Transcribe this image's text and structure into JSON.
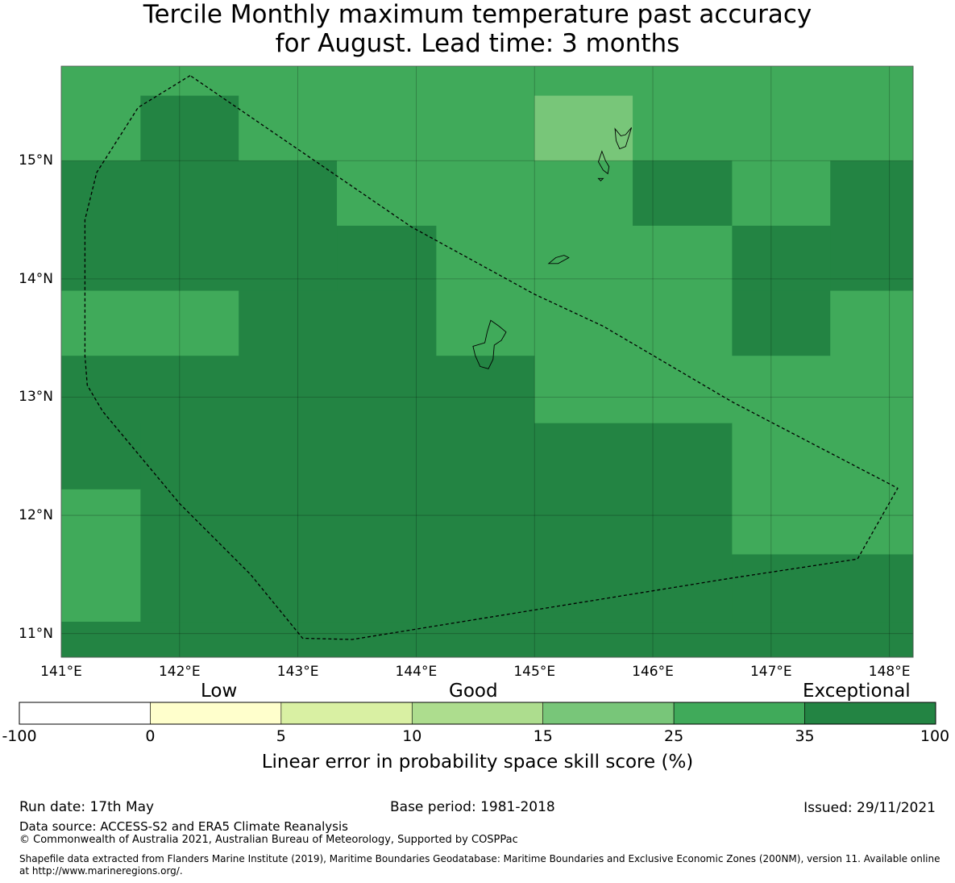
{
  "title": {
    "line1": "Tercile Monthly maximum temperature past accuracy",
    "line2": "for August. Lead time: 3 months"
  },
  "map": {
    "lon_range": [
      141.0,
      148.2
    ],
    "lat_range": [
      10.8,
      15.8
    ],
    "lat_ticks": [
      "15°N",
      "14°N",
      "13°N",
      "12°N",
      "11°N"
    ],
    "lat_tick_values": [
      15,
      14,
      13,
      12,
      11
    ],
    "lon_ticks": [
      "141°E",
      "142°E",
      "143°E",
      "144°E",
      "145°E",
      "146°E",
      "147°E",
      "148°E"
    ],
    "lon_tick_values": [
      141,
      142,
      143,
      144,
      145,
      146,
      147,
      148
    ],
    "grid": true,
    "colors": {
      "c35": "#40aa5a",
      "c100": "#238443",
      "c25": "#78c679"
    },
    "cells": [
      {
        "lon": [
          141.0,
          141.67
        ],
        "lat": [
          15.0,
          15.8
        ],
        "value": "c35"
      },
      {
        "lon": [
          141.67,
          142.5
        ],
        "lat": [
          15.55,
          15.8
        ],
        "value": "c35"
      },
      {
        "lon": [
          141.67,
          142.5
        ],
        "lat": [
          15.0,
          15.55
        ],
        "value": "c100"
      },
      {
        "lon": [
          142.5,
          144.17
        ],
        "lat": [
          15.0,
          15.8
        ],
        "value": "c35"
      },
      {
        "lon": [
          144.17,
          145.0
        ],
        "lat": [
          15.0,
          15.8
        ],
        "value": "c35"
      },
      {
        "lon": [
          145.0,
          145.83
        ],
        "lat": [
          15.55,
          15.8
        ],
        "value": "c35"
      },
      {
        "lon": [
          145.0,
          145.83
        ],
        "lat": [
          15.0,
          15.55
        ],
        "value": "c25"
      },
      {
        "lon": [
          145.83,
          148.2
        ],
        "lat": [
          15.0,
          15.8
        ],
        "value": "c35"
      },
      {
        "lon": [
          141.0,
          142.5
        ],
        "lat": [
          13.9,
          15.0
        ],
        "value": "c100"
      },
      {
        "lon": [
          142.5,
          143.33
        ],
        "lat": [
          13.9,
          15.0
        ],
        "value": "c100"
      },
      {
        "lon": [
          143.33,
          144.17
        ],
        "lat": [
          14.45,
          15.0
        ],
        "value": "c35"
      },
      {
        "lon": [
          143.33,
          144.17
        ],
        "lat": [
          13.9,
          14.45
        ],
        "value": "c100"
      },
      {
        "lon": [
          144.17,
          145.83
        ],
        "lat": [
          13.9,
          15.0
        ],
        "value": "c35"
      },
      {
        "lon": [
          145.83,
          146.67
        ],
        "lat": [
          14.45,
          15.0
        ],
        "value": "c100"
      },
      {
        "lon": [
          145.83,
          146.67
        ],
        "lat": [
          13.9,
          14.45
        ],
        "value": "c35"
      },
      {
        "lon": [
          146.67,
          147.5
        ],
        "lat": [
          14.45,
          15.0
        ],
        "value": "c35"
      },
      {
        "lon": [
          146.67,
          147.5
        ],
        "lat": [
          13.9,
          14.45
        ],
        "value": "c100"
      },
      {
        "lon": [
          147.5,
          148.2
        ],
        "lat": [
          13.9,
          15.0
        ],
        "value": "c100"
      },
      {
        "lon": [
          141.0,
          142.5
        ],
        "lat": [
          13.35,
          13.9
        ],
        "value": "c35"
      },
      {
        "lon": [
          142.5,
          144.17
        ],
        "lat": [
          13.35,
          13.9
        ],
        "value": "c100"
      },
      {
        "lon": [
          144.17,
          145.0
        ],
        "lat": [
          13.35,
          13.9
        ],
        "value": "c35"
      },
      {
        "lon": [
          145.0,
          146.67
        ],
        "lat": [
          13.35,
          13.9
        ],
        "value": "c35"
      },
      {
        "lon": [
          146.67,
          147.5
        ],
        "lat": [
          13.35,
          13.9
        ],
        "value": "c100"
      },
      {
        "lon": [
          147.5,
          148.2
        ],
        "lat": [
          13.35,
          13.9
        ],
        "value": "c35"
      },
      {
        "lon": [
          141.0,
          145.0
        ],
        "lat": [
          12.78,
          13.35
        ],
        "value": "c100"
      },
      {
        "lon": [
          145.0,
          148.2
        ],
        "lat": [
          12.78,
          13.35
        ],
        "value": "c35"
      },
      {
        "lon": [
          141.0,
          141.67
        ],
        "lat": [
          12.22,
          12.78
        ],
        "value": "c100"
      },
      {
        "lon": [
          141.67,
          146.67
        ],
        "lat": [
          12.22,
          12.78
        ],
        "value": "c100"
      },
      {
        "lon": [
          146.67,
          148.2
        ],
        "lat": [
          12.22,
          12.78
        ],
        "value": "c35"
      },
      {
        "lon": [
          141.0,
          141.67
        ],
        "lat": [
          11.1,
          12.22
        ],
        "value": "c35"
      },
      {
        "lon": [
          141.67,
          146.67
        ],
        "lat": [
          11.1,
          12.22
        ],
        "value": "c100"
      },
      {
        "lon": [
          146.67,
          148.2
        ],
        "lat": [
          11.67,
          12.22
        ],
        "value": "c35"
      },
      {
        "lon": [
          146.67,
          148.2
        ],
        "lat": [
          11.1,
          11.67
        ],
        "value": "c100"
      },
      {
        "lon": [
          141.0,
          148.2
        ],
        "lat": [
          10.8,
          11.1
        ],
        "value": "c100"
      }
    ],
    "boundary": [
      [
        142.09,
        15.72
      ],
      [
        141.65,
        15.45
      ],
      [
        141.3,
        14.9
      ],
      [
        141.2,
        14.5
      ],
      [
        141.2,
        13.9
      ],
      [
        141.2,
        13.35
      ],
      [
        141.22,
        13.1
      ],
      [
        141.35,
        12.88
      ],
      [
        142.0,
        12.1
      ],
      [
        142.6,
        11.5
      ],
      [
        143.04,
        10.96
      ],
      [
        143.46,
        10.95
      ],
      [
        145.0,
        11.2
      ],
      [
        146.67,
        11.47
      ],
      [
        147.73,
        11.63
      ],
      [
        148.07,
        12.23
      ],
      [
        146.67,
        12.96
      ],
      [
        145.58,
        13.6
      ],
      [
        145.0,
        13.87
      ],
      [
        143.96,
        14.44
      ],
      [
        142.09,
        15.72
      ]
    ],
    "islands": [
      [
        [
          144.63,
          13.65
        ],
        [
          144.7,
          13.6
        ],
        [
          144.76,
          13.55
        ],
        [
          144.72,
          13.48
        ],
        [
          144.66,
          13.44
        ],
        [
          144.65,
          13.32
        ],
        [
          144.61,
          13.24
        ],
        [
          144.54,
          13.26
        ],
        [
          144.5,
          13.35
        ],
        [
          144.48,
          13.43
        ],
        [
          144.58,
          13.46
        ],
        [
          144.6,
          13.55
        ],
        [
          144.63,
          13.65
        ]
      ],
      [
        [
          145.68,
          15.27
        ],
        [
          145.73,
          15.21
        ],
        [
          145.77,
          15.22
        ],
        [
          145.82,
          15.28
        ],
        [
          145.77,
          15.12
        ],
        [
          145.72,
          15.1
        ],
        [
          145.69,
          15.17
        ],
        [
          145.68,
          15.27
        ]
      ],
      [
        [
          145.57,
          15.08
        ],
        [
          145.6,
          15.0
        ],
        [
          145.63,
          14.95
        ],
        [
          145.62,
          14.89
        ],
        [
          145.58,
          14.92
        ],
        [
          145.54,
          14.99
        ],
        [
          145.57,
          15.08
        ]
      ],
      [
        [
          145.12,
          14.13
        ],
        [
          145.18,
          14.18
        ],
        [
          145.25,
          14.2
        ],
        [
          145.29,
          14.18
        ],
        [
          145.2,
          14.13
        ],
        [
          145.12,
          14.13
        ]
      ],
      [
        [
          145.54,
          14.85
        ],
        [
          145.58,
          14.85
        ],
        [
          145.56,
          14.83
        ],
        [
          145.54,
          14.85
        ]
      ]
    ]
  },
  "colorbar": {
    "categories": [
      "Low",
      "Good",
      "Exceptional"
    ],
    "bins": [
      "#ffffff",
      "#ffffcc",
      "#d9f0a3",
      "#addd8e",
      "#78c679",
      "#40aa5a",
      "#238443"
    ],
    "ticks": [
      "-100",
      "0",
      "5",
      "10",
      "15",
      "25",
      "35",
      "100"
    ],
    "label": "Linear error in probability space skill score (%)"
  },
  "footer": {
    "run_date": "Run date: 17th May",
    "base_period": "Base period: 1981-2018",
    "issued": "Issued: 29/11/2021",
    "data_source": "Data source: ACCESS-S2 and ERA5 Climate Reanalysis",
    "copyright": "© Commonwealth of Australia 2021, Australian Bureau of Meteorology, Supported by COSPPac",
    "shapefile": "Shapefile data extracted from Flanders Marine Institute (2019), Maritime Boundaries Geodatabase: Maritime Boundaries and Exclusive Economic Zones (200NM), version 11. Available online at http://www.marineregions.org/."
  }
}
